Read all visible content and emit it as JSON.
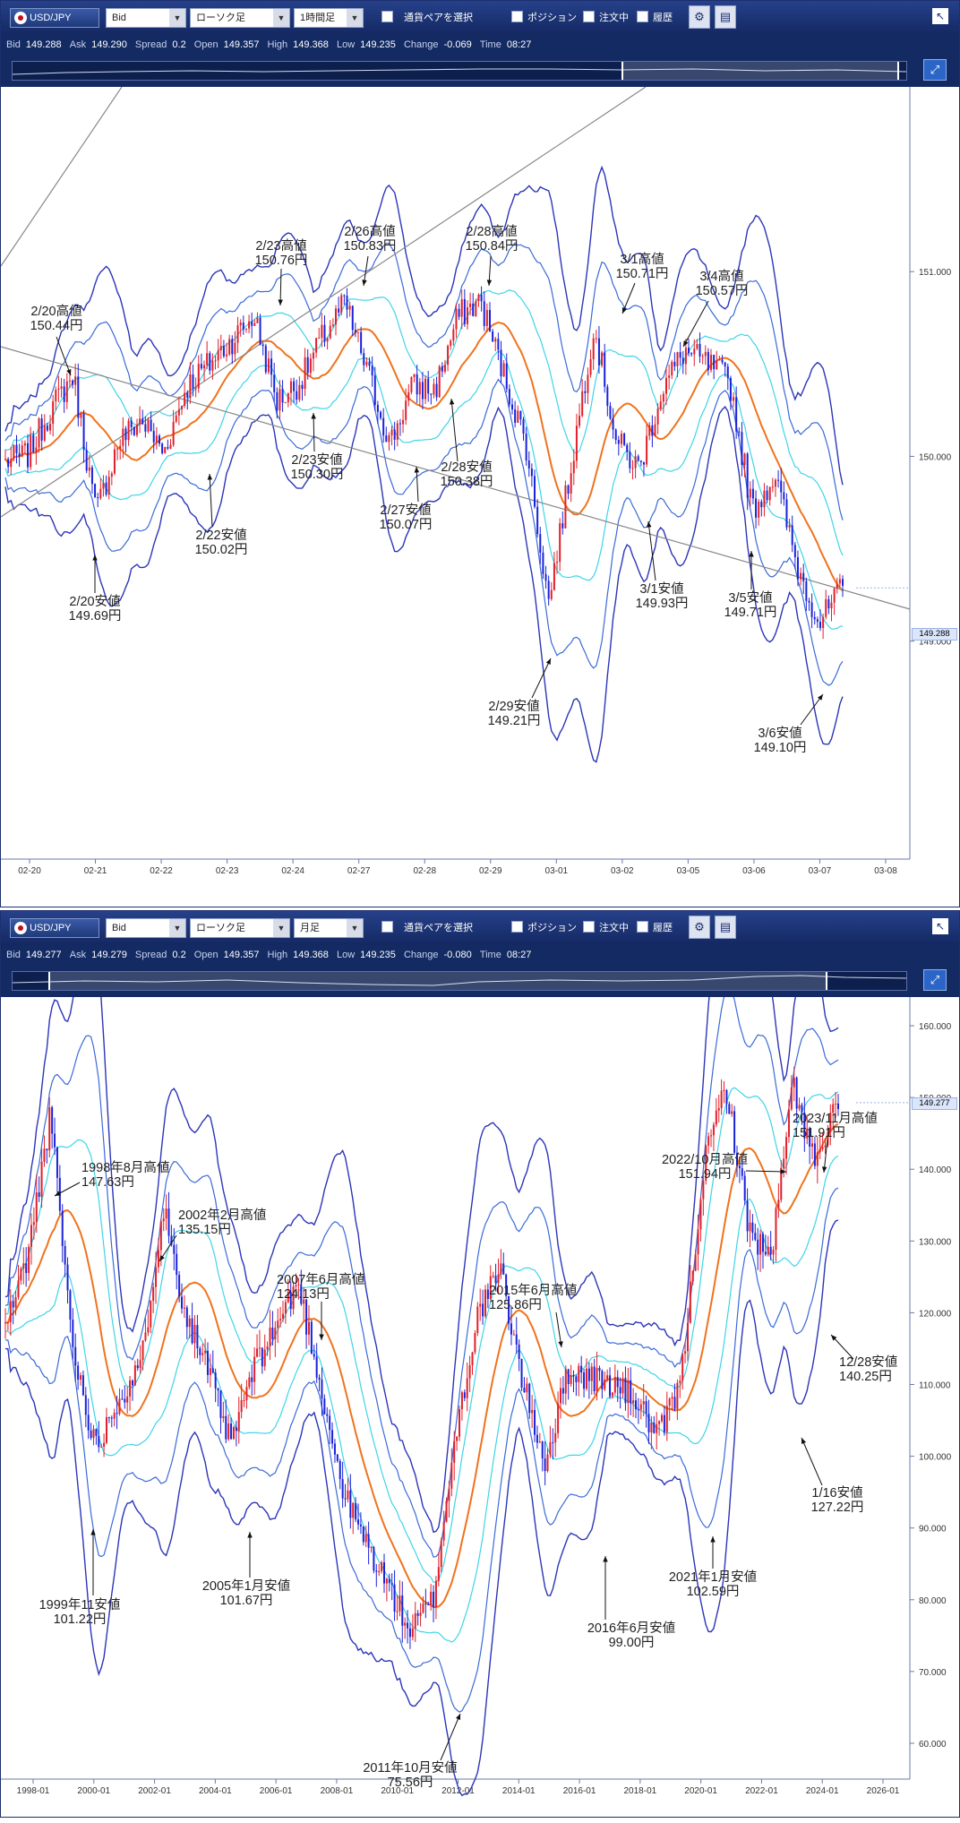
{
  "panels": [
    {
      "toolbar": {
        "pair_label": "USD/JPY",
        "price_type": "Bid",
        "chart_type": "ローソク足",
        "timeframe": "1時間足",
        "select_pair_label": "通貨ペアを選択",
        "position_label": "ポジション",
        "orders_label": "注文中",
        "history_label": "履歴"
      },
      "info": {
        "bid_label": "Bid",
        "bid": "149.288",
        "ask_label": "Ask",
        "ask": "149.290",
        "spread_label": "Spread",
        "spread": "0.2",
        "open_label": "Open",
        "open": "149.357",
        "high_label": "High",
        "high": "149.368",
        "low_label": "Low",
        "low": "149.235",
        "change_label": "Change",
        "change": "-0.069",
        "time_label": "Time",
        "time": "08:27"
      },
      "current_price_tag": "149.288",
      "chart_data": {
        "type": "candlestick",
        "x_ticks": [
          "02-20",
          "02-21",
          "02-22",
          "02-23",
          "02-24",
          "02-27",
          "02-28",
          "02-29",
          "03-01",
          "03-02",
          "03-05",
          "03-06",
          "03-07",
          "03-08"
        ],
        "y_ticks": [
          "151.000",
          "150.000",
          "149.000"
        ],
        "ylim": [
          147.82,
          152.0
        ],
        "current_price": 149.288,
        "grid": false,
        "series": [
          {
            "name": "",
            "values": [
              149.97,
              150.01,
              150.25,
              150.44,
              149.69,
              150.08,
              150.2,
              150.02,
              150.38,
              150.5,
              150.63,
              150.76,
              150.3,
              150.4,
              150.64,
              150.83,
              150.46,
              150.07,
              150.38,
              150.36,
              150.76,
              150.84,
              150.45,
              150.07,
              149.21,
              149.95,
              150.71,
              150.08,
              149.93,
              150.36,
              150.57,
              150.5,
              150.41,
              149.71,
              149.9,
              149.4,
              149.1,
              149.29
            ]
          }
        ],
        "annotations": [
          {
            "label": "2/20高値",
            "value": "150.44円",
            "x": "02-20",
            "y": 150.44
          },
          {
            "label": "2/20安値",
            "value": "149.69円",
            "x": "02-21",
            "y": 149.69
          },
          {
            "label": "2/22安値",
            "value": "150.02円",
            "x": "02-22",
            "y": 150.02
          },
          {
            "label": "2/23高値",
            "value": "150.76円",
            "x": "02-23",
            "y": 150.76
          },
          {
            "label": "2/23安値",
            "value": "150.30円",
            "x": "02-23",
            "y": 150.3
          },
          {
            "label": "2/26高値",
            "value": "150.83円",
            "x": "02-27",
            "y": 150.83
          },
          {
            "label": "2/27安値",
            "value": "150.07円",
            "x": "02-28",
            "y": 150.07
          },
          {
            "label": "2/28高値",
            "value": "150.84円",
            "x": "02-28",
            "y": 150.84
          },
          {
            "label": "2/28安値",
            "value": "150.38円",
            "x": "02-28",
            "y": 150.38
          },
          {
            "label": "2/29安値",
            "value": "149.21円",
            "x": "03-01",
            "y": 149.21
          },
          {
            "label": "3/1高値",
            "value": "150.71円",
            "x": "03-02",
            "y": 150.71
          },
          {
            "label": "3/1安値",
            "value": "149.93円",
            "x": "03-02",
            "y": 149.93
          },
          {
            "label": "3/4高値",
            "value": "150.57円",
            "x": "03-05",
            "y": 150.57
          },
          {
            "label": "3/5安値",
            "value": "149.71円",
            "x": "03-06",
            "y": 149.71
          },
          {
            "label": "3/6安値",
            "value": "149.10円",
            "x": "03-07",
            "y": 149.1
          }
        ]
      }
    },
    {
      "toolbar": {
        "pair_label": "USD/JPY",
        "price_type": "Bid",
        "chart_type": "ローソク足",
        "timeframe": "月足",
        "select_pair_label": "通貨ペアを選択",
        "position_label": "ポジション",
        "orders_label": "注文中",
        "history_label": "履歴"
      },
      "info": {
        "bid_label": "Bid",
        "bid": "149.277",
        "ask_label": "Ask",
        "ask": "149.279",
        "spread_label": "Spread",
        "spread": "0.2",
        "open_label": "Open",
        "open": "149.357",
        "high_label": "High",
        "high": "149.368",
        "low_label": "Low",
        "low": "149.235",
        "change_label": "Change",
        "change": "-0.080",
        "time_label": "Time",
        "time": "08:27"
      },
      "current_price_tag": "149.277",
      "chart_data": {
        "type": "candlestick",
        "x_ticks": [
          "1998-01",
          "2000-01",
          "2002-01",
          "2004-01",
          "2006-01",
          "2008-01",
          "2010-01",
          "2012-01",
          "2014-01",
          "2016-01",
          "2018-01",
          "2020-01",
          "2022-01",
          "2024-01",
          "2026-01"
        ],
        "y_ticks": [
          "160.000",
          "150.000",
          "140.000",
          "130.000",
          "120.000",
          "110.000",
          "100.000",
          "90.000",
          "80.000",
          "70.000",
          "60.000"
        ],
        "ylim": [
          55.0,
          164.0
        ],
        "current_price": 149.277,
        "grid": false,
        "series": [
          {
            "name": "",
            "values": [
              118.0,
              128.0,
              147.63,
              115.0,
              101.22,
              108.0,
              112.0,
              135.15,
              120.0,
              112.0,
              101.67,
              112.0,
              118.0,
              124.13,
              110.0,
              95.0,
              88.0,
              82.0,
              75.56,
              80.0,
              103.0,
              120.0,
              125.86,
              110.0,
              99.0,
              112.0,
              111.0,
              110.0,
              108.0,
              102.59,
              110.0,
              140.0,
              151.94,
              132.0,
              127.22,
              151.91,
              140.25,
              149.28
            ]
          }
        ],
        "annotations": [
          {
            "label": "1998年8月高値",
            "value": "147.63円",
            "x": "1998-08",
            "y": 147.63
          },
          {
            "label": "1999年11安値",
            "value": "101.22円",
            "x": "1999-11",
            "y": 101.22
          },
          {
            "label": "2002年2月高値",
            "value": "135.15円",
            "x": "2002-02",
            "y": 135.15
          },
          {
            "label": "2005年1月安値",
            "value": "101.67円",
            "x": "2005-01",
            "y": 101.67
          },
          {
            "label": "2007年6月高値",
            "value": "124.13円",
            "x": "2007-06",
            "y": 124.13
          },
          {
            "label": "2011年10月安値",
            "value": "75.56円",
            "x": "2011-10",
            "y": 75.56
          },
          {
            "label": "2015年6月高値",
            "value": "125.86円",
            "x": "2015-06",
            "y": 125.86
          },
          {
            "label": "2016年6月安値",
            "value": "99.00円",
            "x": "2016-06",
            "y": 99.0
          },
          {
            "label": "2021年1月安値",
            "value": "102.59円",
            "x": "2021-01",
            "y": 102.59
          },
          {
            "label": "2022/10月高値",
            "value": "151.94円",
            "x": "2022-10",
            "y": 151.94
          },
          {
            "label": "2023/11月高値",
            "value": "151.91円",
            "x": "2023-11",
            "y": 151.91
          },
          {
            "label": "1/16安値",
            "value": "127.22円",
            "x": "2023-01",
            "y": 127.22
          },
          {
            "label": "12/28安値",
            "value": "140.25円",
            "x": "2023-12",
            "y": 140.25
          }
        ]
      }
    }
  ]
}
